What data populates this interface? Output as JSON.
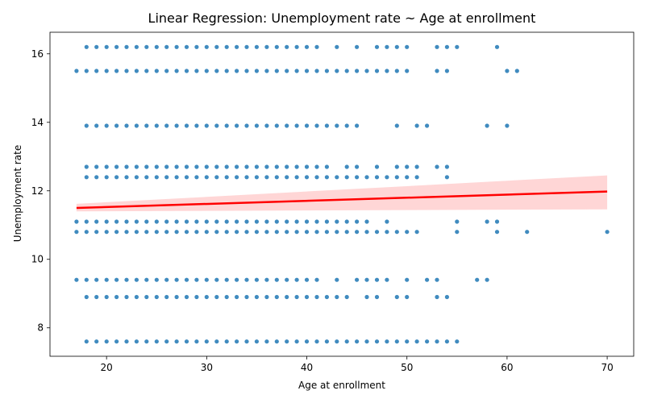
{
  "chart_data": {
    "type": "scatter",
    "title": "Linear Regression: Unemployment rate ~ Age at enrollment",
    "xlabel": "Age at enrollment",
    "ylabel": "Unemployment rate",
    "xlim": [
      14.35,
      72.65
    ],
    "ylim": [
      7.17,
      16.63
    ],
    "xticks": [
      "20",
      "30",
      "40",
      "50",
      "60",
      "70"
    ],
    "yticks": [
      "8",
      "10",
      "12",
      "14",
      "16"
    ],
    "grid": false,
    "legend": "none",
    "point_color": "#1f77b4",
    "line_color": "#ff0000",
    "band_color": "#ffcccc",
    "y_levels": [
      7.6,
      8.9,
      9.4,
      10.8,
      11.1,
      12.4,
      12.7,
      13.9,
      15.5,
      16.2
    ],
    "points": [
      {
        "y": 7.6,
        "x": [
          18,
          19,
          20,
          21,
          22,
          23,
          24,
          25,
          26,
          27,
          28,
          29,
          30,
          31,
          32,
          33,
          34,
          35,
          36,
          37,
          38,
          39,
          40,
          41,
          42,
          43,
          44,
          45,
          46,
          47,
          48,
          49,
          50,
          51,
          52,
          53,
          54,
          55
        ]
      },
      {
        "y": 8.9,
        "x": [
          18,
          19,
          20,
          21,
          22,
          23,
          24,
          25,
          26,
          27,
          28,
          29,
          30,
          31,
          32,
          33,
          34,
          35,
          36,
          37,
          38,
          39,
          40,
          41,
          42,
          43,
          44,
          46,
          47,
          49,
          50,
          53,
          54
        ]
      },
      {
        "y": 9.4,
        "x": [
          17,
          18,
          19,
          20,
          21,
          22,
          23,
          24,
          25,
          26,
          27,
          28,
          29,
          30,
          31,
          32,
          33,
          34,
          35,
          36,
          37,
          38,
          39,
          40,
          41,
          43,
          45,
          46,
          47,
          48,
          50,
          52,
          53,
          57,
          58
        ]
      },
      {
        "y": 10.8,
        "x": [
          17,
          18,
          19,
          20,
          21,
          22,
          23,
          24,
          25,
          26,
          27,
          28,
          29,
          30,
          31,
          32,
          33,
          34,
          35,
          36,
          37,
          38,
          39,
          40,
          41,
          42,
          43,
          44,
          45,
          46,
          47,
          48,
          49,
          50,
          51,
          55,
          59,
          62,
          70
        ]
      },
      {
        "y": 11.1,
        "x": [
          17,
          18,
          19,
          20,
          21,
          22,
          23,
          24,
          25,
          26,
          27,
          28,
          29,
          30,
          31,
          32,
          33,
          34,
          35,
          36,
          37,
          38,
          39,
          40,
          41,
          42,
          43,
          44,
          45,
          46,
          48,
          55,
          58,
          59
        ]
      },
      {
        "y": 12.4,
        "x": [
          18,
          19,
          20,
          21,
          22,
          23,
          24,
          25,
          26,
          27,
          28,
          29,
          30,
          31,
          32,
          33,
          34,
          35,
          36,
          37,
          38,
          39,
          40,
          41,
          42,
          43,
          44,
          45,
          46,
          47,
          48,
          49,
          50,
          51,
          54
        ]
      },
      {
        "y": 12.7,
        "x": [
          18,
          19,
          20,
          21,
          22,
          23,
          24,
          25,
          26,
          27,
          28,
          29,
          30,
          31,
          32,
          33,
          34,
          35,
          36,
          37,
          38,
          39,
          40,
          41,
          42,
          44,
          45,
          47,
          49,
          50,
          51,
          53,
          54
        ]
      },
      {
        "y": 13.9,
        "x": [
          18,
          19,
          20,
          21,
          22,
          23,
          24,
          25,
          26,
          27,
          28,
          29,
          30,
          31,
          32,
          33,
          34,
          35,
          36,
          37,
          38,
          39,
          40,
          41,
          42,
          43,
          44,
          45,
          49,
          51,
          52,
          58,
          60
        ]
      },
      {
        "y": 15.5,
        "x": [
          17,
          18,
          19,
          20,
          21,
          22,
          23,
          24,
          25,
          26,
          27,
          28,
          29,
          30,
          31,
          32,
          33,
          34,
          35,
          36,
          37,
          38,
          39,
          40,
          41,
          42,
          43,
          44,
          45,
          46,
          47,
          48,
          49,
          50,
          53,
          54,
          60,
          61
        ]
      },
      {
        "y": 16.2,
        "x": [
          18,
          19,
          20,
          21,
          22,
          23,
          24,
          25,
          26,
          27,
          28,
          29,
          30,
          31,
          32,
          33,
          34,
          35,
          36,
          37,
          38,
          39,
          40,
          41,
          43,
          45,
          47,
          48,
          49,
          50,
          53,
          54,
          55,
          59
        ]
      }
    ],
    "regression": {
      "x": [
        17,
        70
      ],
      "y": [
        11.5,
        11.98
      ],
      "ci_lower": [
        11.4,
        11.46
      ],
      "ci_upper": [
        11.62,
        12.45
      ]
    }
  }
}
